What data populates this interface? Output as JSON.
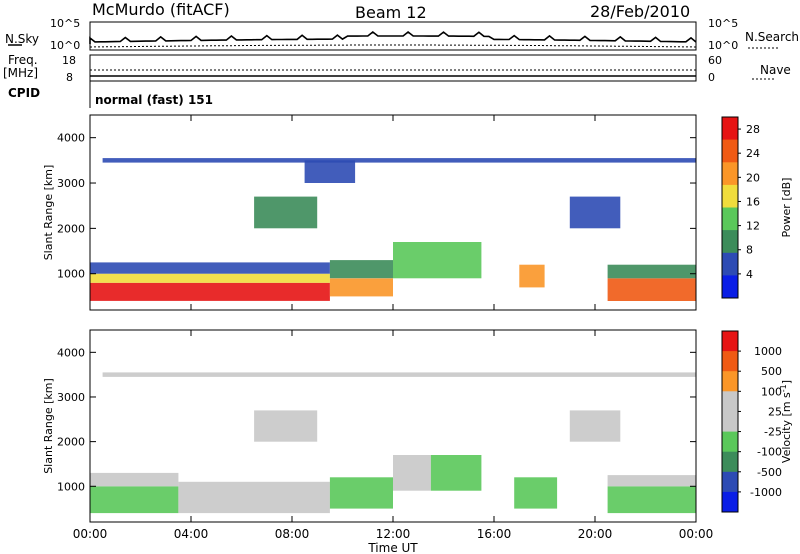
{
  "header": {
    "station": "McMurdo (fitACF)",
    "beam": "Beam 12",
    "date": "28/Feb/2010"
  },
  "top_panels": {
    "nsky_label": "N.Sky",
    "nsky_ticks": [
      "10^5",
      "10^0"
    ],
    "nsearch_label": "N.Search",
    "freq_label_1": "Freq.",
    "freq_label_2": "[MHz]",
    "freq_ticks": [
      "18",
      "8"
    ],
    "nave_label": "Nave",
    "nave_ticks": [
      "60",
      "0"
    ],
    "cpid_label": "CPID",
    "cpid_value": "normal (fast) 151"
  },
  "colors": {
    "power": [
      "#0a1ee6",
      "#2d4bb4",
      "#3c8c5a",
      "#5ac85a",
      "#f0dc3c",
      "#fa9628",
      "#f05a14",
      "#e61414"
    ],
    "velocity": [
      "#e61414",
      "#f05a14",
      "#fa9628",
      "#c8c8c8",
      "#c8c8c8",
      "#5ac85a",
      "#3c8c5a",
      "#2d4bb4",
      "#0a1ee6"
    ]
  },
  "chart_data": [
    {
      "type": "heatmap",
      "title": "Power",
      "ylabel": "Slant Range [km]",
      "xlabel": "Time UT",
      "x_ticks": [
        "00:00",
        "04:00",
        "08:00",
        "12:00",
        "16:00",
        "20:00",
        "00:00"
      ],
      "y_ticks": [
        "1000",
        "2000",
        "3000",
        "4000"
      ],
      "ylim": [
        200,
        4500
      ],
      "colorbar_label": "Power [dB]",
      "colorbar_ticks": [
        "4",
        "8",
        "12",
        "16",
        "20",
        "24",
        "28"
      ],
      "colorbar_range": [
        0,
        30
      ],
      "regions": [
        {
          "x": [
            0.0,
            9.5
          ],
          "y": [
            400,
            800
          ],
          "value": 28
        },
        {
          "x": [
            0.0,
            9.5
          ],
          "y": [
            800,
            1000
          ],
          "value": 18
        },
        {
          "x": [
            0.0,
            9.5
          ],
          "y": [
            1000,
            1250
          ],
          "value": 6
        },
        {
          "x": [
            9.5,
            12.0
          ],
          "y": [
            500,
            900
          ],
          "value": 20
        },
        {
          "x": [
            9.5,
            12.0
          ],
          "y": [
            900,
            1300
          ],
          "value": 8
        },
        {
          "x": [
            12.0,
            15.5
          ],
          "y": [
            900,
            1700
          ],
          "value": 12
        },
        {
          "x": [
            6.5,
            9.0
          ],
          "y": [
            2000,
            2700
          ],
          "value": 10
        },
        {
          "x": [
            8.5,
            10.5
          ],
          "y": [
            3000,
            3500
          ],
          "value": 4
        },
        {
          "x": [
            17.0,
            18.0
          ],
          "y": [
            700,
            1200
          ],
          "value": 22
        },
        {
          "x": [
            19.0,
            21.0
          ],
          "y": [
            2000,
            2700
          ],
          "value": 6
        },
        {
          "x": [
            20.5,
            24.0
          ],
          "y": [
            400,
            900
          ],
          "value": 24
        },
        {
          "x": [
            20.5,
            24.0
          ],
          "y": [
            900,
            1200
          ],
          "value": 8
        },
        {
          "x": [
            0.5,
            24.0
          ],
          "y": [
            3450,
            3550
          ],
          "value": 4
        }
      ]
    },
    {
      "type": "heatmap",
      "title": "Velocity",
      "ylabel": "Slant Range [km]",
      "xlabel": "Time UT",
      "x_ticks": [
        "00:00",
        "04:00",
        "08:00",
        "12:00",
        "16:00",
        "20:00",
        "00:00"
      ],
      "y_ticks": [
        "1000",
        "2000",
        "3000",
        "4000"
      ],
      "ylim": [
        200,
        4500
      ],
      "colorbar_label": "Velocity [m s^-1]",
      "colorbar_ticks": [
        "1000",
        "500",
        "100",
        "25",
        "-25",
        "-100",
        "-500",
        "-1000"
      ],
      "colorbar_range": [
        -1200,
        1200
      ],
      "regions": [
        {
          "x": [
            0.0,
            3.5
          ],
          "y": [
            400,
            1000
          ],
          "value": -250
        },
        {
          "x": [
            0.0,
            3.5
          ],
          "y": [
            1000,
            1300
          ],
          "value": 0
        },
        {
          "x": [
            3.5,
            9.5
          ],
          "y": [
            400,
            1100
          ],
          "value": 60
        },
        {
          "x": [
            9.5,
            12.0
          ],
          "y": [
            500,
            1200
          ],
          "value": -300
        },
        {
          "x": [
            12.0,
            13.5
          ],
          "y": [
            900,
            1700
          ],
          "value": 300
        },
        {
          "x": [
            13.5,
            15.5
          ],
          "y": [
            900,
            1700
          ],
          "value": -300
        },
        {
          "x": [
            6.5,
            9.0
          ],
          "y": [
            2000,
            2700
          ],
          "value": 200
        },
        {
          "x": [
            16.8,
            18.5
          ],
          "y": [
            500,
            1200
          ],
          "value": -300
        },
        {
          "x": [
            19.0,
            21.0
          ],
          "y": [
            2000,
            2700
          ],
          "value": 0
        },
        {
          "x": [
            20.5,
            24.0
          ],
          "y": [
            400,
            1000
          ],
          "value": -300
        },
        {
          "x": [
            20.5,
            24.0
          ],
          "y": [
            1000,
            1250
          ],
          "value": 0
        },
        {
          "x": [
            0.5,
            24.0
          ],
          "y": [
            3450,
            3550
          ],
          "value": -80
        }
      ]
    }
  ]
}
